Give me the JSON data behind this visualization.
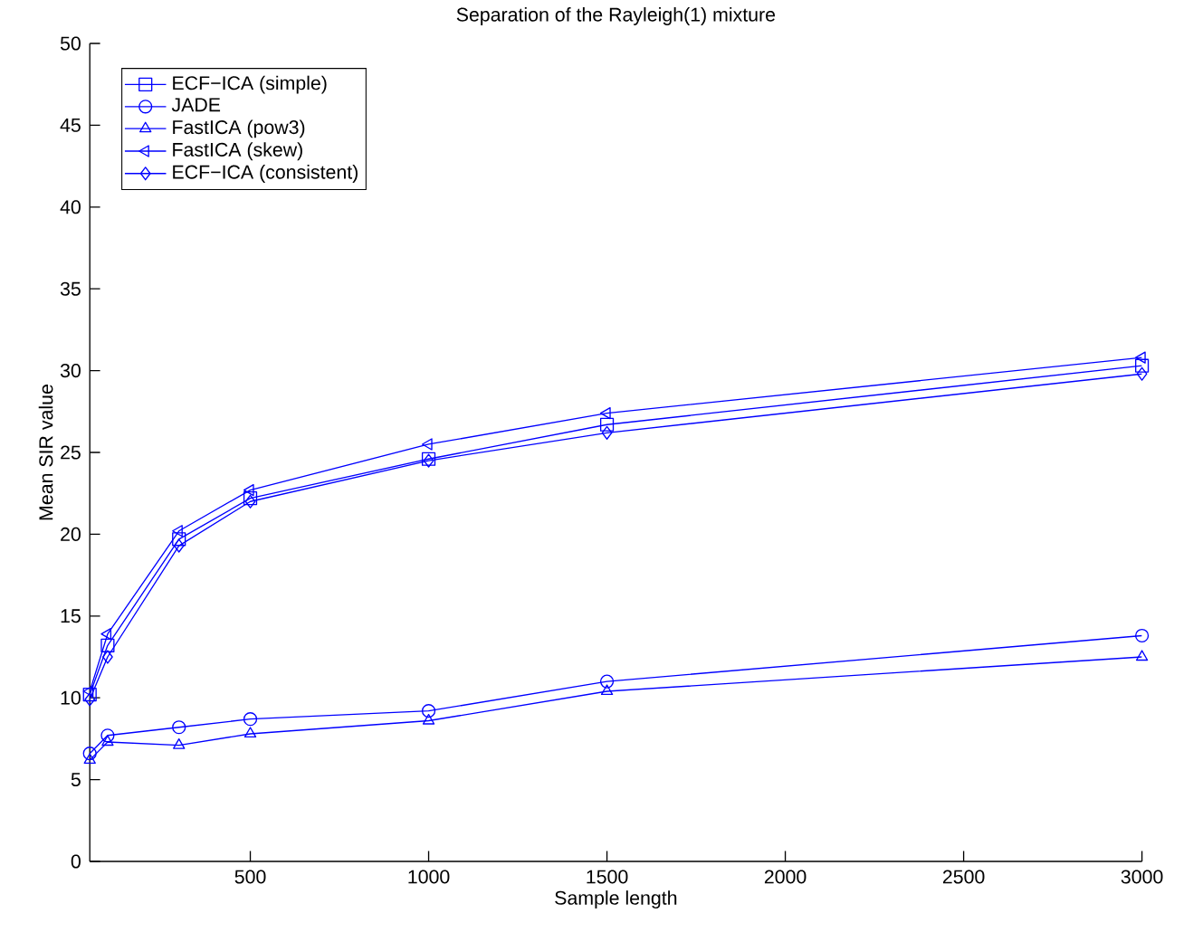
{
  "chart_data": {
    "type": "line",
    "title": "Separation of the Rayleigh(1) mixture",
    "xlabel": "Sample length",
    "ylabel": "Mean SIR value",
    "x": [
      50,
      100,
      300,
      500,
      1000,
      1500,
      3000
    ],
    "series": [
      {
        "name": "ECF−ICA (simple)",
        "color": "#0000ff",
        "marker": "square",
        "values": [
          10.2,
          13.2,
          19.7,
          22.2,
          24.6,
          26.7,
          30.3
        ]
      },
      {
        "name": "JADE",
        "color": "#0000ff",
        "marker": "circle",
        "values": [
          6.6,
          7.7,
          8.2,
          8.7,
          9.2,
          11.0,
          13.8
        ]
      },
      {
        "name": "FastICA (pow3)",
        "color": "#0000ff",
        "marker": "triangle",
        "values": [
          6.2,
          7.3,
          7.1,
          7.8,
          8.6,
          10.4,
          12.5
        ]
      },
      {
        "name": "FastICA (skew)",
        "color": "#0000ff",
        "marker": "triangle-left",
        "values": [
          10.4,
          13.9,
          20.2,
          22.7,
          25.5,
          27.4,
          30.8
        ]
      },
      {
        "name": "ECF−ICA (consistent)",
        "color": "#0000ff",
        "marker": "diamond",
        "values": [
          9.9,
          12.5,
          19.3,
          22.0,
          24.5,
          26.2,
          29.8
        ]
      }
    ],
    "xlim": [
      50,
      3000
    ],
    "ylim": [
      0,
      50
    ],
    "xticks": [
      500,
      1000,
      1500,
      2000,
      2500,
      3000
    ],
    "yticks": [
      0,
      5,
      10,
      15,
      20,
      25,
      30,
      35,
      40,
      45,
      50
    ],
    "legend": "top left",
    "grid": false,
    "line_style": "solid"
  }
}
